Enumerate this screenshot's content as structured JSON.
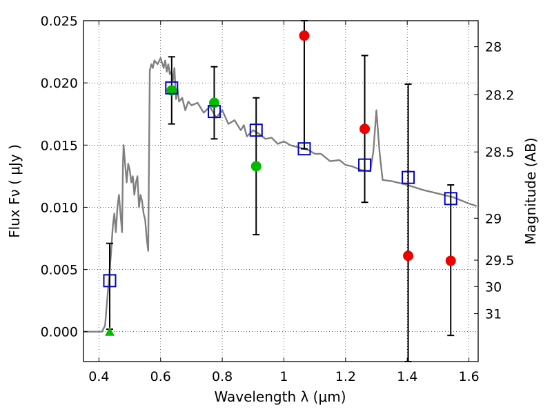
{
  "chart_data": {
    "type": "scatter",
    "title": "",
    "xlabel": "Wavelength  λ (μm)",
    "ylabel": "Flux  Fν  ( μJy )",
    "y2label": "Magnitude (AB)",
    "xlim": [
      0.35,
      1.63
    ],
    "ylim": [
      -0.0024,
      0.025
    ],
    "grid": true,
    "x_ticks": [
      0.4,
      0.6,
      0.8,
      1.0,
      1.2,
      1.4,
      1.6
    ],
    "x_tick_labels": [
      "0.4",
      "0.6",
      "0.8",
      "1",
      "1.2",
      "1.4",
      "1.6"
    ],
    "y_ticks": [
      0.0,
      0.005,
      0.01,
      0.015,
      0.02,
      0.025
    ],
    "y_tick_labels": [
      "0.000",
      "0.005",
      "0.010",
      "0.015",
      "0.020",
      "0.025"
    ],
    "y2_ticks": [
      {
        "label": "28",
        "flux": 0.02291
      },
      {
        "label": "28.2",
        "flux": 0.01905
      },
      {
        "label": "28.5",
        "flux": 0.01445
      },
      {
        "label": "29",
        "flux": 0.00912
      },
      {
        "label": "29.5",
        "flux": 0.00575
      },
      {
        "label": "30",
        "flux": 0.00363
      },
      {
        "label": "31",
        "flux": 0.00145
      }
    ],
    "series": [
      {
        "kind": "line",
        "color": "#808080",
        "x": [
          0.35,
          0.39,
          0.41,
          0.42,
          0.425,
          0.43,
          0.435,
          0.44,
          0.445,
          0.45,
          0.455,
          0.46,
          0.465,
          0.47,
          0.475,
          0.478,
          0.48,
          0.485,
          0.49,
          0.495,
          0.5,
          0.505,
          0.51,
          0.515,
          0.52,
          0.525,
          0.53,
          0.535,
          0.54,
          0.545,
          0.55,
          0.555,
          0.56,
          0.565,
          0.57,
          0.575,
          0.58,
          0.59,
          0.6,
          0.61,
          0.615,
          0.62,
          0.625,
          0.63,
          0.635,
          0.64,
          0.645,
          0.65,
          0.655,
          0.66,
          0.67,
          0.68,
          0.69,
          0.7,
          0.72,
          0.74,
          0.76,
          0.78,
          0.8,
          0.82,
          0.84,
          0.86,
          0.87,
          0.88,
          0.9,
          0.92,
          0.94,
          0.96,
          0.98,
          1.0,
          1.02,
          1.05,
          1.08,
          1.1,
          1.12,
          1.15,
          1.18,
          1.2,
          1.22,
          1.25,
          1.28,
          1.29,
          1.3,
          1.31,
          1.32,
          1.35,
          1.4,
          1.45,
          1.5,
          1.55,
          1.6,
          1.625
        ],
        "y": [
          0.0,
          0.0,
          0.0,
          0.0005,
          0.002,
          0.0035,
          0.005,
          0.0065,
          0.0085,
          0.0095,
          0.008,
          0.01,
          0.011,
          0.0095,
          0.008,
          0.0135,
          0.015,
          0.0135,
          0.012,
          0.0135,
          0.013,
          0.012,
          0.0125,
          0.011,
          0.012,
          0.0125,
          0.01,
          0.011,
          0.0105,
          0.0095,
          0.009,
          0.0075,
          0.0065,
          0.021,
          0.0215,
          0.0212,
          0.0218,
          0.0215,
          0.022,
          0.0212,
          0.0218,
          0.0209,
          0.0215,
          0.0207,
          0.0209,
          0.0202,
          0.0212,
          0.0187,
          0.0195,
          0.0185,
          0.0188,
          0.0178,
          0.0185,
          0.0182,
          0.0184,
          0.0176,
          0.0181,
          0.0172,
          0.0178,
          0.0167,
          0.017,
          0.0162,
          0.0166,
          0.0157,
          0.0162,
          0.0159,
          0.0155,
          0.0156,
          0.0151,
          0.0153,
          0.015,
          0.0148,
          0.0146,
          0.0143,
          0.0143,
          0.0137,
          0.0138,
          0.0134,
          0.0133,
          0.013,
          0.0129,
          0.0145,
          0.0178,
          0.0145,
          0.0122,
          0.0121,
          0.0118,
          0.0114,
          0.0111,
          0.0108,
          0.0103,
          0.0101
        ]
      },
      {
        "kind": "squares",
        "color": "#0000cc",
        "x": [
          0.435,
          0.636,
          0.774,
          0.91,
          1.066,
          1.262,
          1.403,
          1.541
        ],
        "y": [
          0.0041,
          0.0196,
          0.0177,
          0.0162,
          0.0147,
          0.0134,
          0.0124,
          0.0107
        ],
        "err_lo": [
          0.0002,
          0.0167,
          0.0155,
          0.0078,
          0.0147,
          0.0104,
          -0.0024,
          -0.0003
        ],
        "err_hi": [
          0.0071,
          0.0221,
          0.0213,
          0.0188,
          0.025,
          0.0222,
          0.0199,
          0.0118
        ]
      },
      {
        "kind": "circles",
        "color": "#00bb00",
        "x": [
          0.636,
          0.774,
          0.91
        ],
        "y": [
          0.0194,
          0.0184,
          0.0133
        ]
      },
      {
        "kind": "circles",
        "color": "#ee0000",
        "x": [
          1.066,
          1.262,
          1.403,
          1.541
        ],
        "y": [
          0.0238,
          0.0163,
          0.0061,
          0.0057
        ]
      },
      {
        "kind": "triangle",
        "color": "#00bb00",
        "x": [
          0.435
        ],
        "y": [
          0.0
        ]
      }
    ]
  }
}
